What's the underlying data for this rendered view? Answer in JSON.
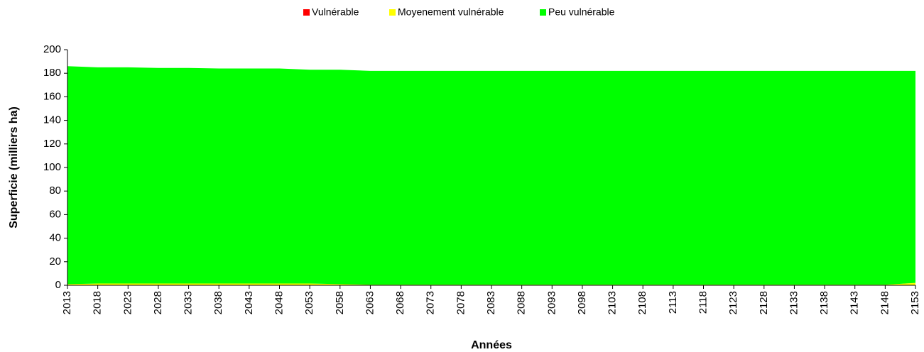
{
  "chart_data": {
    "type": "area",
    "x_label": "Années",
    "y_label": "Superficie (milliers ha)",
    "categories": [
      "2013",
      "2018",
      "2023",
      "2028",
      "2033",
      "2038",
      "2043",
      "2048",
      "2053",
      "2058",
      "2063",
      "2068",
      "2073",
      "2078",
      "2083",
      "2088",
      "2093",
      "2098",
      "2103",
      "2108",
      "2113",
      "2118",
      "2123",
      "2128",
      "2133",
      "2138",
      "2143",
      "2148",
      "2153"
    ],
    "series": [
      {
        "name": "Vulnérable",
        "color": "#ff0000",
        "values": [
          0,
          0,
          0,
          0,
          0,
          0,
          0,
          0,
          0,
          0,
          0,
          0,
          0,
          0,
          0,
          0,
          0,
          0,
          0,
          0,
          0,
          0,
          0,
          0,
          0,
          0,
          0,
          0,
          0
        ]
      },
      {
        "name": "Moyenement vulnérable",
        "color": "#ffff00",
        "values": [
          1,
          1.5,
          1.5,
          1.5,
          1.5,
          1.5,
          1.5,
          1.5,
          1.5,
          1,
          0.5,
          0.5,
          0.5,
          0.5,
          0.5,
          0.5,
          0.5,
          0.5,
          0.5,
          0.5,
          0.5,
          0.5,
          0.5,
          0.5,
          0.5,
          0.5,
          0.5,
          0.5,
          2
        ]
      },
      {
        "name": "Peu vulnérable",
        "color": "#00ff00",
        "values": [
          185,
          183.5,
          183.5,
          183,
          183,
          182.5,
          182.5,
          182.5,
          181.5,
          182,
          181.5,
          181.5,
          181.5,
          181.5,
          181.5,
          181.5,
          181.5,
          181.5,
          181.5,
          181.5,
          181.5,
          181.5,
          181.5,
          181.5,
          181.5,
          181.5,
          181.5,
          181.5,
          180
        ]
      }
    ],
    "stacked": true,
    "ylim": [
      0,
      200
    ],
    "yticks": [
      0,
      20,
      40,
      60,
      80,
      100,
      120,
      140,
      160,
      180,
      200
    ],
    "legend": "top"
  }
}
